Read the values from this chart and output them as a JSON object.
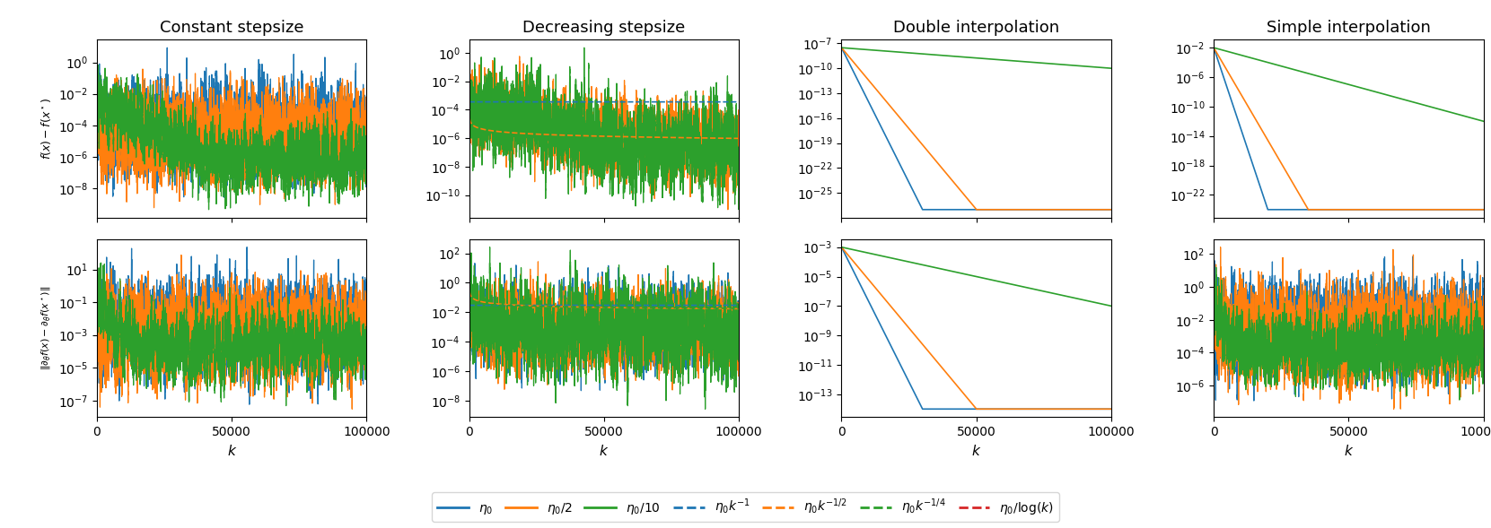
{
  "titles": [
    "Constant stepsize",
    "Decreasing stepsize",
    "Double interpolation",
    "Simple interpolation"
  ],
  "colors": {
    "blue": "#1f77b4",
    "orange": "#ff7f0e",
    "green": "#2ca02c",
    "red": "#d62728"
  },
  "ylabel_top": "$f(x) - f(x^\\star)$",
  "ylabel_bottom": "$\\|\\partial_\\theta f(x) - \\partial_\\theta f(x^\\star)\\|$",
  "xlabel": "$k$",
  "n_points": 100000,
  "legend_labels": [
    "$\\eta_0$",
    "$\\eta_0/2$",
    "$\\eta_0/10$",
    "$\\eta_0 k^{-1}$",
    "$\\eta_0 k^{-1/2}$",
    "$\\eta_0 k^{-1/4}$",
    "$\\eta_0/\\log(k)$"
  ]
}
